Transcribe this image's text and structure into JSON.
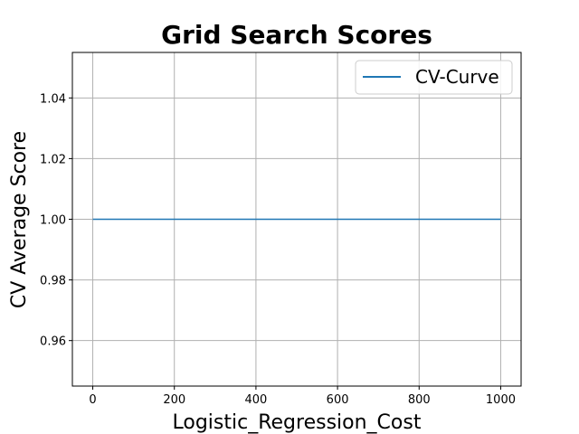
{
  "chart_data": {
    "type": "line",
    "title": "Grid Search Scores",
    "xlabel": "Logistic_Regression_Cost",
    "ylabel": "CV Average Score",
    "xlim": [
      -50,
      1050
    ],
    "ylim": [
      0.945,
      1.055
    ],
    "xticks": [
      0,
      200,
      400,
      600,
      800,
      1000
    ],
    "xtick_labels": [
      "0",
      "200",
      "400",
      "600",
      "800",
      "1000"
    ],
    "yticks": [
      0.96,
      0.98,
      1.0,
      1.02,
      1.04
    ],
    "ytick_labels": [
      "0.96",
      "0.98",
      "1.00",
      "1.02",
      "1.04"
    ],
    "grid": true,
    "legend_position": "top-right",
    "series": [
      {
        "name": "CV-Curve",
        "color": "#1f77b4",
        "x": [
          0,
          1000
        ],
        "y": [
          1.0,
          1.0
        ]
      }
    ]
  }
}
